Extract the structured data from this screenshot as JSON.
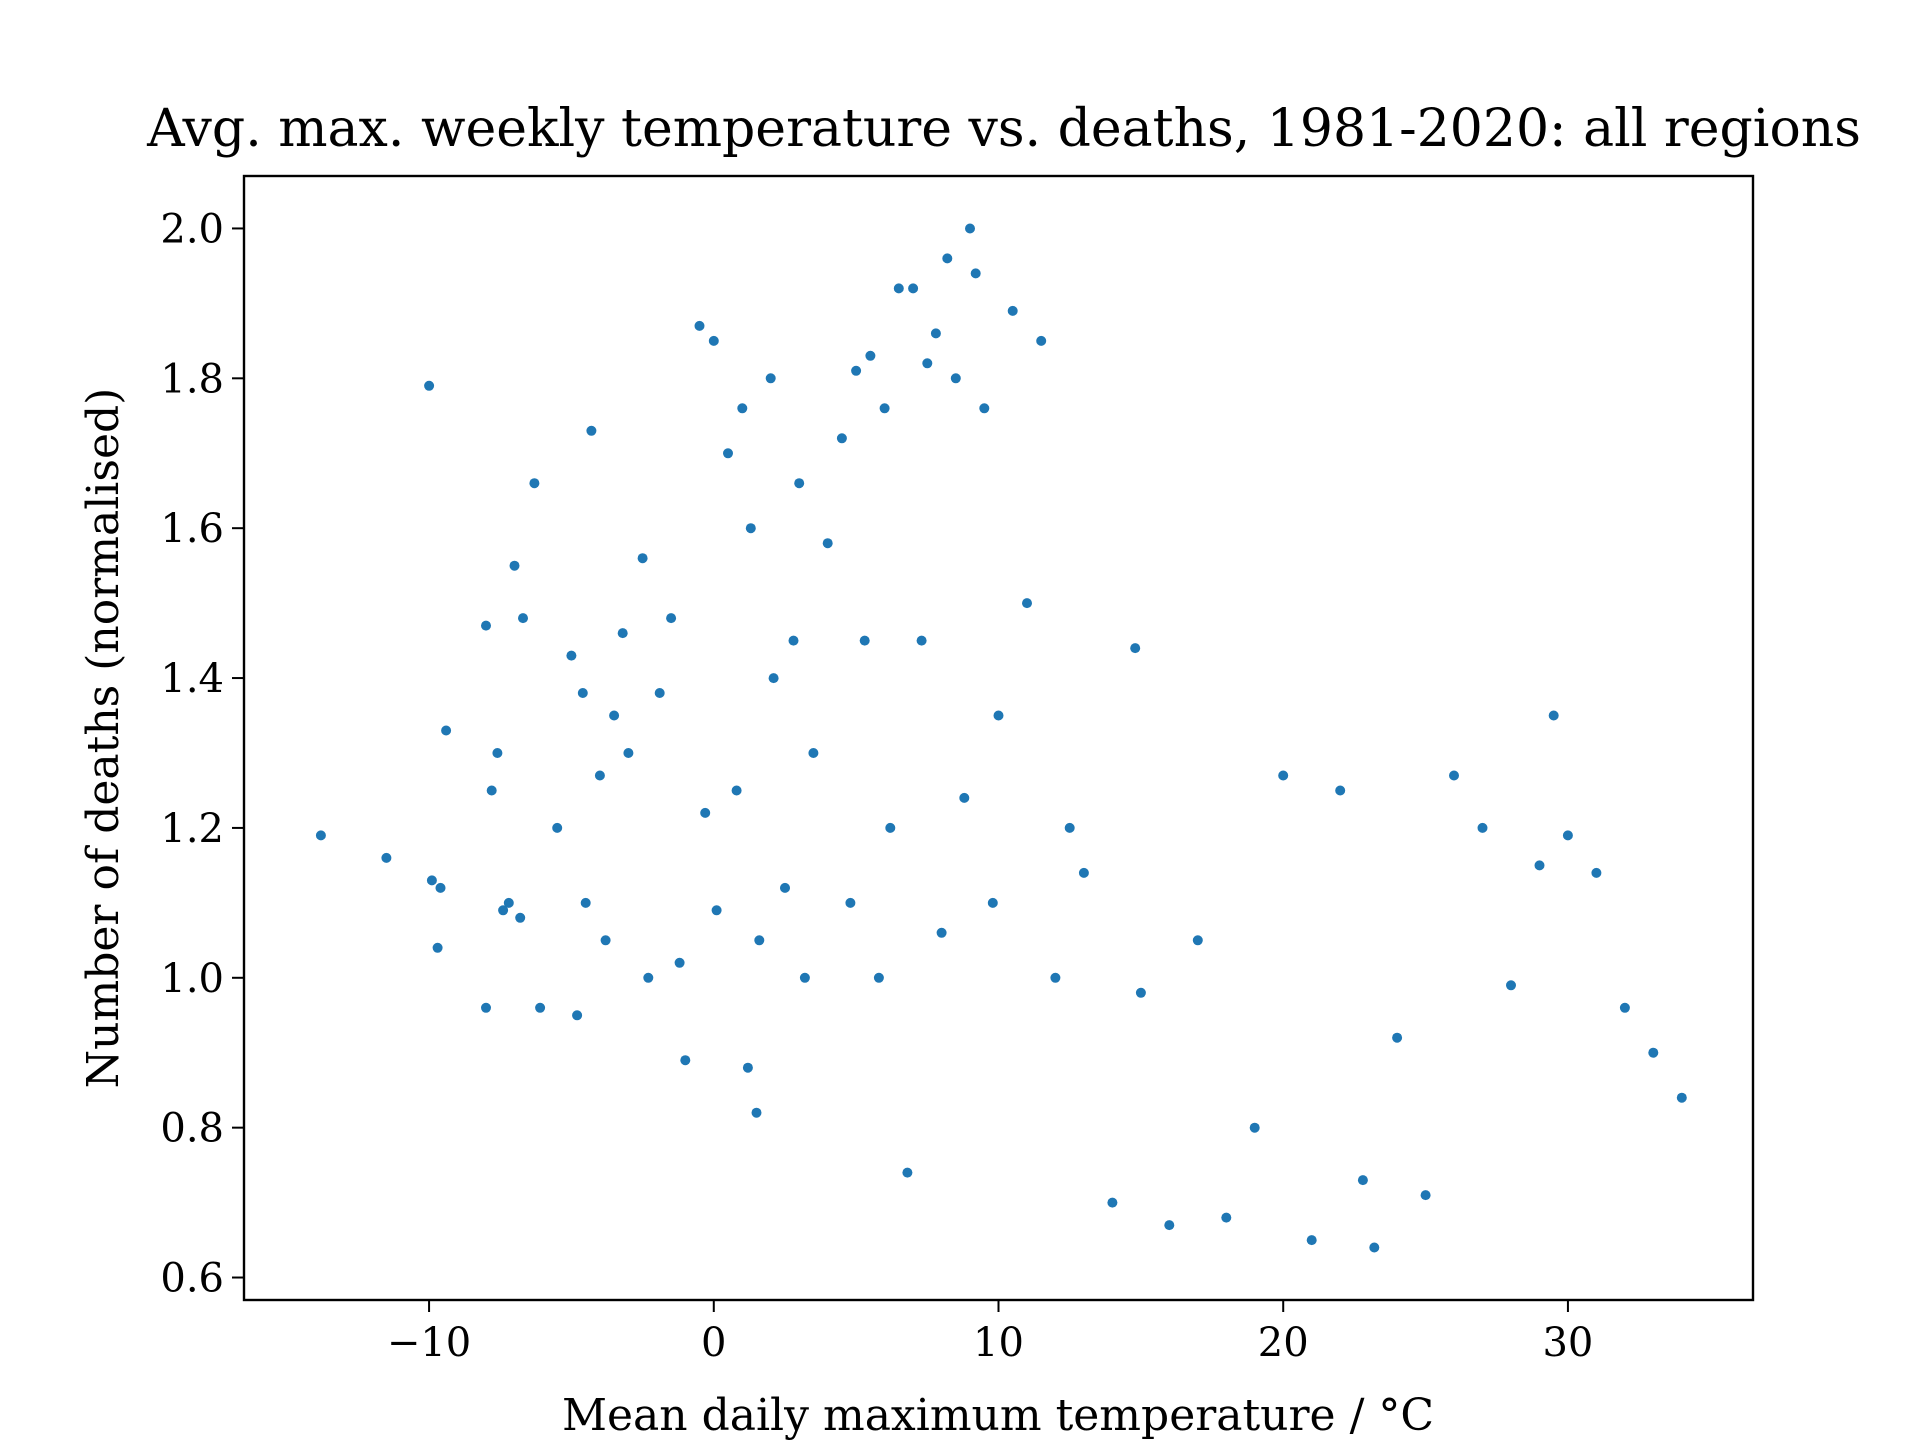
{
  "chart_data": {
    "type": "scatter",
    "title": "Avg. max. weekly temperature vs. deaths, 1981-2020: all regions",
    "xlabel": "Mean daily maximum temperature / °C",
    "ylabel": "Number of deaths (normalised)",
    "xlim": [
      -16.5,
      36.5
    ],
    "ylim": [
      0.57,
      2.07
    ],
    "xticks": [
      -10,
      0,
      10,
      20,
      30
    ],
    "xtick_labels": [
      "−10",
      "0",
      "10",
      "20",
      "30"
    ],
    "yticks": [
      0.6,
      0.8,
      1.0,
      1.2,
      1.4,
      1.6,
      1.8,
      2.0
    ],
    "ytick_labels": [
      "0.6",
      "0.8",
      "1.0",
      "1.2",
      "1.4",
      "1.6",
      "1.8",
      "2.0"
    ],
    "grid": false,
    "legend": "none",
    "marker_color": "#1f77b4",
    "series": [
      {
        "x": [
          -13.8,
          -11.5,
          -10.0,
          -9.9,
          -9.7,
          -9.6,
          -9.4,
          -8.0,
          -8.0,
          -7.8,
          -7.6,
          -7.4,
          -7.2,
          -7.0,
          -6.8,
          -6.7,
          -6.3,
          -6.1,
          -5.5,
          -5.0,
          -4.8,
          -4.6,
          -4.5,
          -4.3,
          -4.0,
          -3.8,
          -3.5,
          -3.2,
          -3.0,
          -2.5,
          -2.3,
          -1.9,
          -1.5,
          -1.2,
          -1.0,
          -0.5,
          -0.3,
          0.0,
          0.1,
          0.5,
          0.8,
          1.0,
          1.2,
          1.3,
          1.5,
          1.6,
          2.0,
          2.1,
          2.5,
          2.8,
          3.0,
          3.2,
          3.5,
          4.0,
          4.5,
          4.8,
          5.0,
          5.3,
          5.5,
          5.8,
          6.0,
          6.2,
          6.5,
          6.8,
          7.0,
          7.3,
          7.5,
          7.8,
          8.0,
          8.2,
          8.5,
          8.8,
          9.0,
          9.2,
          9.5,
          9.8,
          10.0,
          10.5,
          11.0,
          11.5,
          12.0,
          12.5,
          13.0,
          14.0,
          14.8,
          15.0,
          16.0,
          17.0,
          18.0,
          19.0,
          20.0,
          21.0,
          22.0,
          22.8,
          23.2,
          24.0,
          25.0,
          26.0,
          27.0,
          28.0,
          29.0,
          29.5,
          30.0,
          31.0,
          32.0,
          33.0,
          34.0
        ],
        "y": [
          1.19,
          1.16,
          1.79,
          1.13,
          1.04,
          1.12,
          1.33,
          1.47,
          0.96,
          1.25,
          1.3,
          1.09,
          1.1,
          1.55,
          1.08,
          1.48,
          1.66,
          0.96,
          1.2,
          1.43,
          0.95,
          1.38,
          1.1,
          1.73,
          1.27,
          1.05,
          1.35,
          1.46,
          1.3,
          1.56,
          1.0,
          1.38,
          1.48,
          1.02,
          0.89,
          1.87,
          1.22,
          1.85,
          1.09,
          1.7,
          1.25,
          1.76,
          0.88,
          1.6,
          0.82,
          1.05,
          1.8,
          1.4,
          1.12,
          1.45,
          1.66,
          1.0,
          1.3,
          1.58,
          1.72,
          1.1,
          1.81,
          1.45,
          1.83,
          1.0,
          1.76,
          1.2,
          1.92,
          0.74,
          1.92,
          1.45,
          1.82,
          1.86,
          1.06,
          1.96,
          1.8,
          1.24,
          2.0,
          1.94,
          1.76,
          1.1,
          1.35,
          1.89,
          1.5,
          1.85,
          1.0,
          1.2,
          1.14,
          0.7,
          1.44,
          0.98,
          0.67,
          1.05,
          0.68,
          0.8,
          1.27,
          0.65,
          1.25,
          0.73,
          0.64,
          0.92,
          0.71,
          1.27,
          1.2,
          0.99,
          1.15,
          1.35,
          1.19,
          1.14,
          0.96,
          0.9,
          0.84
        ]
      }
    ]
  }
}
